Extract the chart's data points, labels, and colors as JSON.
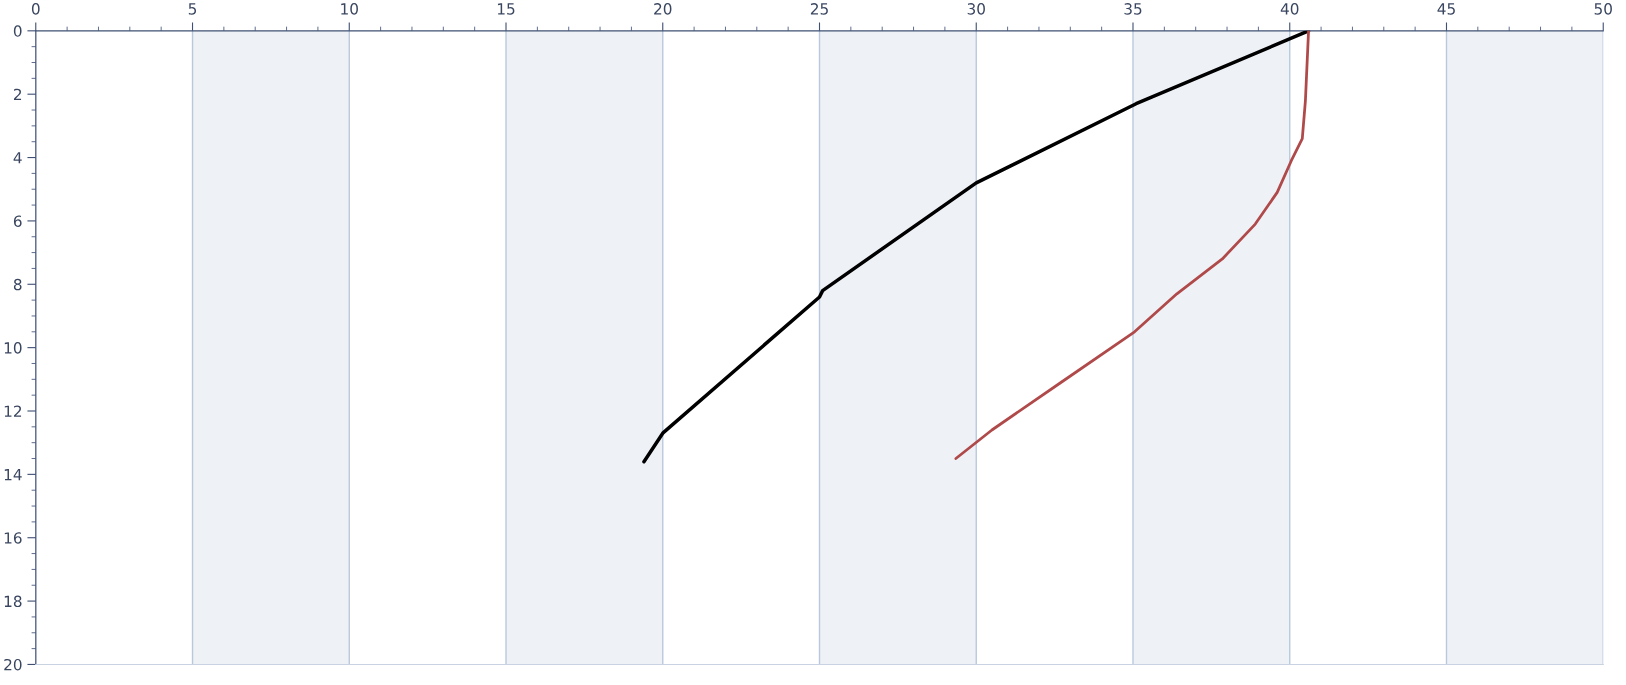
{
  "chart_data": {
    "type": "line",
    "xlim": [
      0,
      50
    ],
    "xticks": [
      0,
      5,
      10,
      15,
      20,
      25,
      30,
      35,
      40,
      45,
      50
    ],
    "ylim": [
      20,
      0
    ],
    "yticks": [
      0,
      2,
      4,
      6,
      8,
      10,
      12,
      14,
      16,
      18,
      20
    ],
    "grid": "x",
    "bands": [
      {
        "axis": "x",
        "from": 5,
        "to": 10,
        "color": "#eef2f7"
      },
      {
        "axis": "x",
        "from": 15,
        "to": 20,
        "color": "#eef2f7"
      },
      {
        "axis": "x",
        "from": 25,
        "to": 30,
        "color": "#eef2f7"
      },
      {
        "axis": "x",
        "from": 35,
        "to": 40,
        "color": "#eef2f7"
      },
      {
        "axis": "x",
        "from": 45,
        "to": 50,
        "color": "#eef2f7"
      }
    ],
    "series": [
      {
        "color": "#000000",
        "x": [
          40.6,
          35.1,
          30.0,
          25.1,
          25.0,
          20.0,
          19.4
        ],
        "values": [
          0.0,
          2.3,
          4.8,
          8.2,
          8.4,
          12.7,
          13.6
        ]
      },
      {
        "color": "#b04a4a",
        "x": [
          40.6,
          40.5,
          40.4,
          40.05,
          39.6,
          38.9,
          37.85,
          36.4,
          35.05,
          32.7,
          30.5,
          29.35
        ],
        "values": [
          0.0,
          2.2,
          3.4,
          4.1,
          5.1,
          6.1,
          7.2,
          8.3,
          9.5,
          11.1,
          12.6,
          13.5
        ]
      }
    ]
  }
}
